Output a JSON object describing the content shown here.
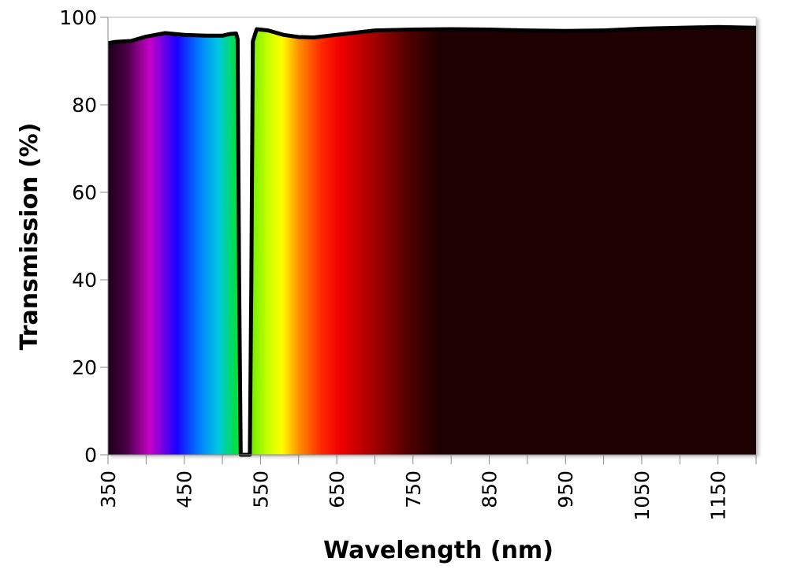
{
  "chart_data": {
    "type": "area",
    "title": "",
    "xlabel": "Wavelength (nm)",
    "ylabel": "Transmission (%)",
    "xlim": [
      350,
      1200
    ],
    "ylim": [
      0,
      100
    ],
    "grid": false,
    "legend": "none",
    "x_ticks": [
      350,
      400,
      450,
      500,
      550,
      600,
      650,
      700,
      750,
      800,
      850,
      900,
      950,
      1000,
      1050,
      1100,
      1150,
      1200
    ],
    "x_tick_labels": [
      "350",
      "450",
      "550",
      "650",
      "750",
      "850",
      "950",
      "1050",
      "1150"
    ],
    "x_tick_label_values": [
      350,
      450,
      550,
      650,
      750,
      850,
      950,
      1050,
      1150
    ],
    "y_tick_labels": [
      "0",
      "20",
      "40",
      "60",
      "80",
      "100"
    ],
    "y_tick_values": [
      0,
      20,
      40,
      60,
      80,
      100
    ],
    "fill": "visible spectrum color gradient",
    "line_color": "#000000",
    "series": [
      {
        "x": [
          350,
          360,
          380,
          400,
          425,
          450,
          480,
          500,
          510,
          518,
          520,
          522,
          524,
          526,
          530,
          534,
          536,
          538,
          540,
          545,
          560,
          580,
          600,
          620,
          650,
          700,
          750,
          800,
          850,
          900,
          950,
          1000,
          1050,
          1100,
          1150,
          1200
        ],
        "y": [
          94.1,
          94.4,
          94.6,
          95.6,
          96.4,
          96.0,
          95.8,
          95.8,
          96.2,
          96.3,
          95.0,
          40,
          0,
          0,
          0,
          0,
          0,
          40,
          94.5,
          97.3,
          97.0,
          96.0,
          95.5,
          95.4,
          96.0,
          97.0,
          97.2,
          97.3,
          97.2,
          97.0,
          96.9,
          97.0,
          97.4,
          97.6,
          97.8,
          97.6
        ]
      }
    ],
    "spectrum_colors": [
      {
        "nm": 350,
        "color": "#1a0018"
      },
      {
        "nm": 375,
        "color": "#4a0048"
      },
      {
        "nm": 405,
        "color": "#c800c8"
      },
      {
        "nm": 440,
        "color": "#1800ff"
      },
      {
        "nm": 470,
        "color": "#0080ff"
      },
      {
        "nm": 495,
        "color": "#00c8e0"
      },
      {
        "nm": 518,
        "color": "#00e040"
      },
      {
        "nm": 540,
        "color": "#78f000"
      },
      {
        "nm": 560,
        "color": "#c8ff00"
      },
      {
        "nm": 578,
        "color": "#ffff00"
      },
      {
        "nm": 600,
        "color": "#ff9000"
      },
      {
        "nm": 630,
        "color": "#ff2800"
      },
      {
        "nm": 655,
        "color": "#f00000"
      },
      {
        "nm": 700,
        "color": "#a00000"
      },
      {
        "nm": 745,
        "color": "#500000"
      },
      {
        "nm": 785,
        "color": "#1e0000"
      },
      {
        "nm": 1200,
        "color": "#1e0000"
      }
    ]
  }
}
